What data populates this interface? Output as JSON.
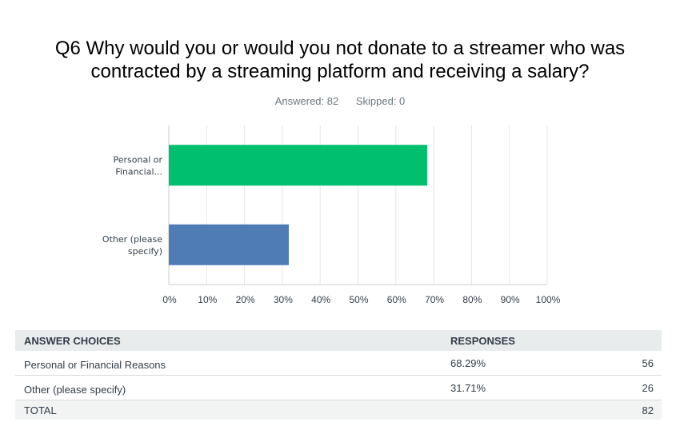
{
  "question": {
    "title": "Q6 Why would you or would you not donate to a streamer who was contracted by a streaming platform and receiving a salary?",
    "answered": "Answered: 82",
    "skipped": "Skipped: 0"
  },
  "chart_data": {
    "type": "bar",
    "orientation": "horizontal",
    "categories": [
      "Personal or Financial...",
      "Other (please specify)"
    ],
    "category_lines": [
      [
        "Personal or",
        "Financial..."
      ],
      [
        "Other (please",
        "specify)"
      ]
    ],
    "values": [
      68.29,
      31.71
    ],
    "colors": [
      "#00bf6f",
      "#507cb6"
    ],
    "xlim": [
      0,
      100
    ],
    "xticks": [
      "0%",
      "10%",
      "20%",
      "30%",
      "40%",
      "50%",
      "60%",
      "70%",
      "80%",
      "90%",
      "100%"
    ],
    "grid": true
  },
  "table": {
    "headers": {
      "choices": "ANSWER CHOICES",
      "responses": "RESPONSES"
    },
    "rows": [
      {
        "choice": "Personal or Financial Reasons",
        "percent": "68.29%",
        "count": "56"
      },
      {
        "choice": "Other (please specify)",
        "percent": "31.71%",
        "count": "26"
      }
    ],
    "total": {
      "label": "TOTAL",
      "count": "82"
    }
  }
}
